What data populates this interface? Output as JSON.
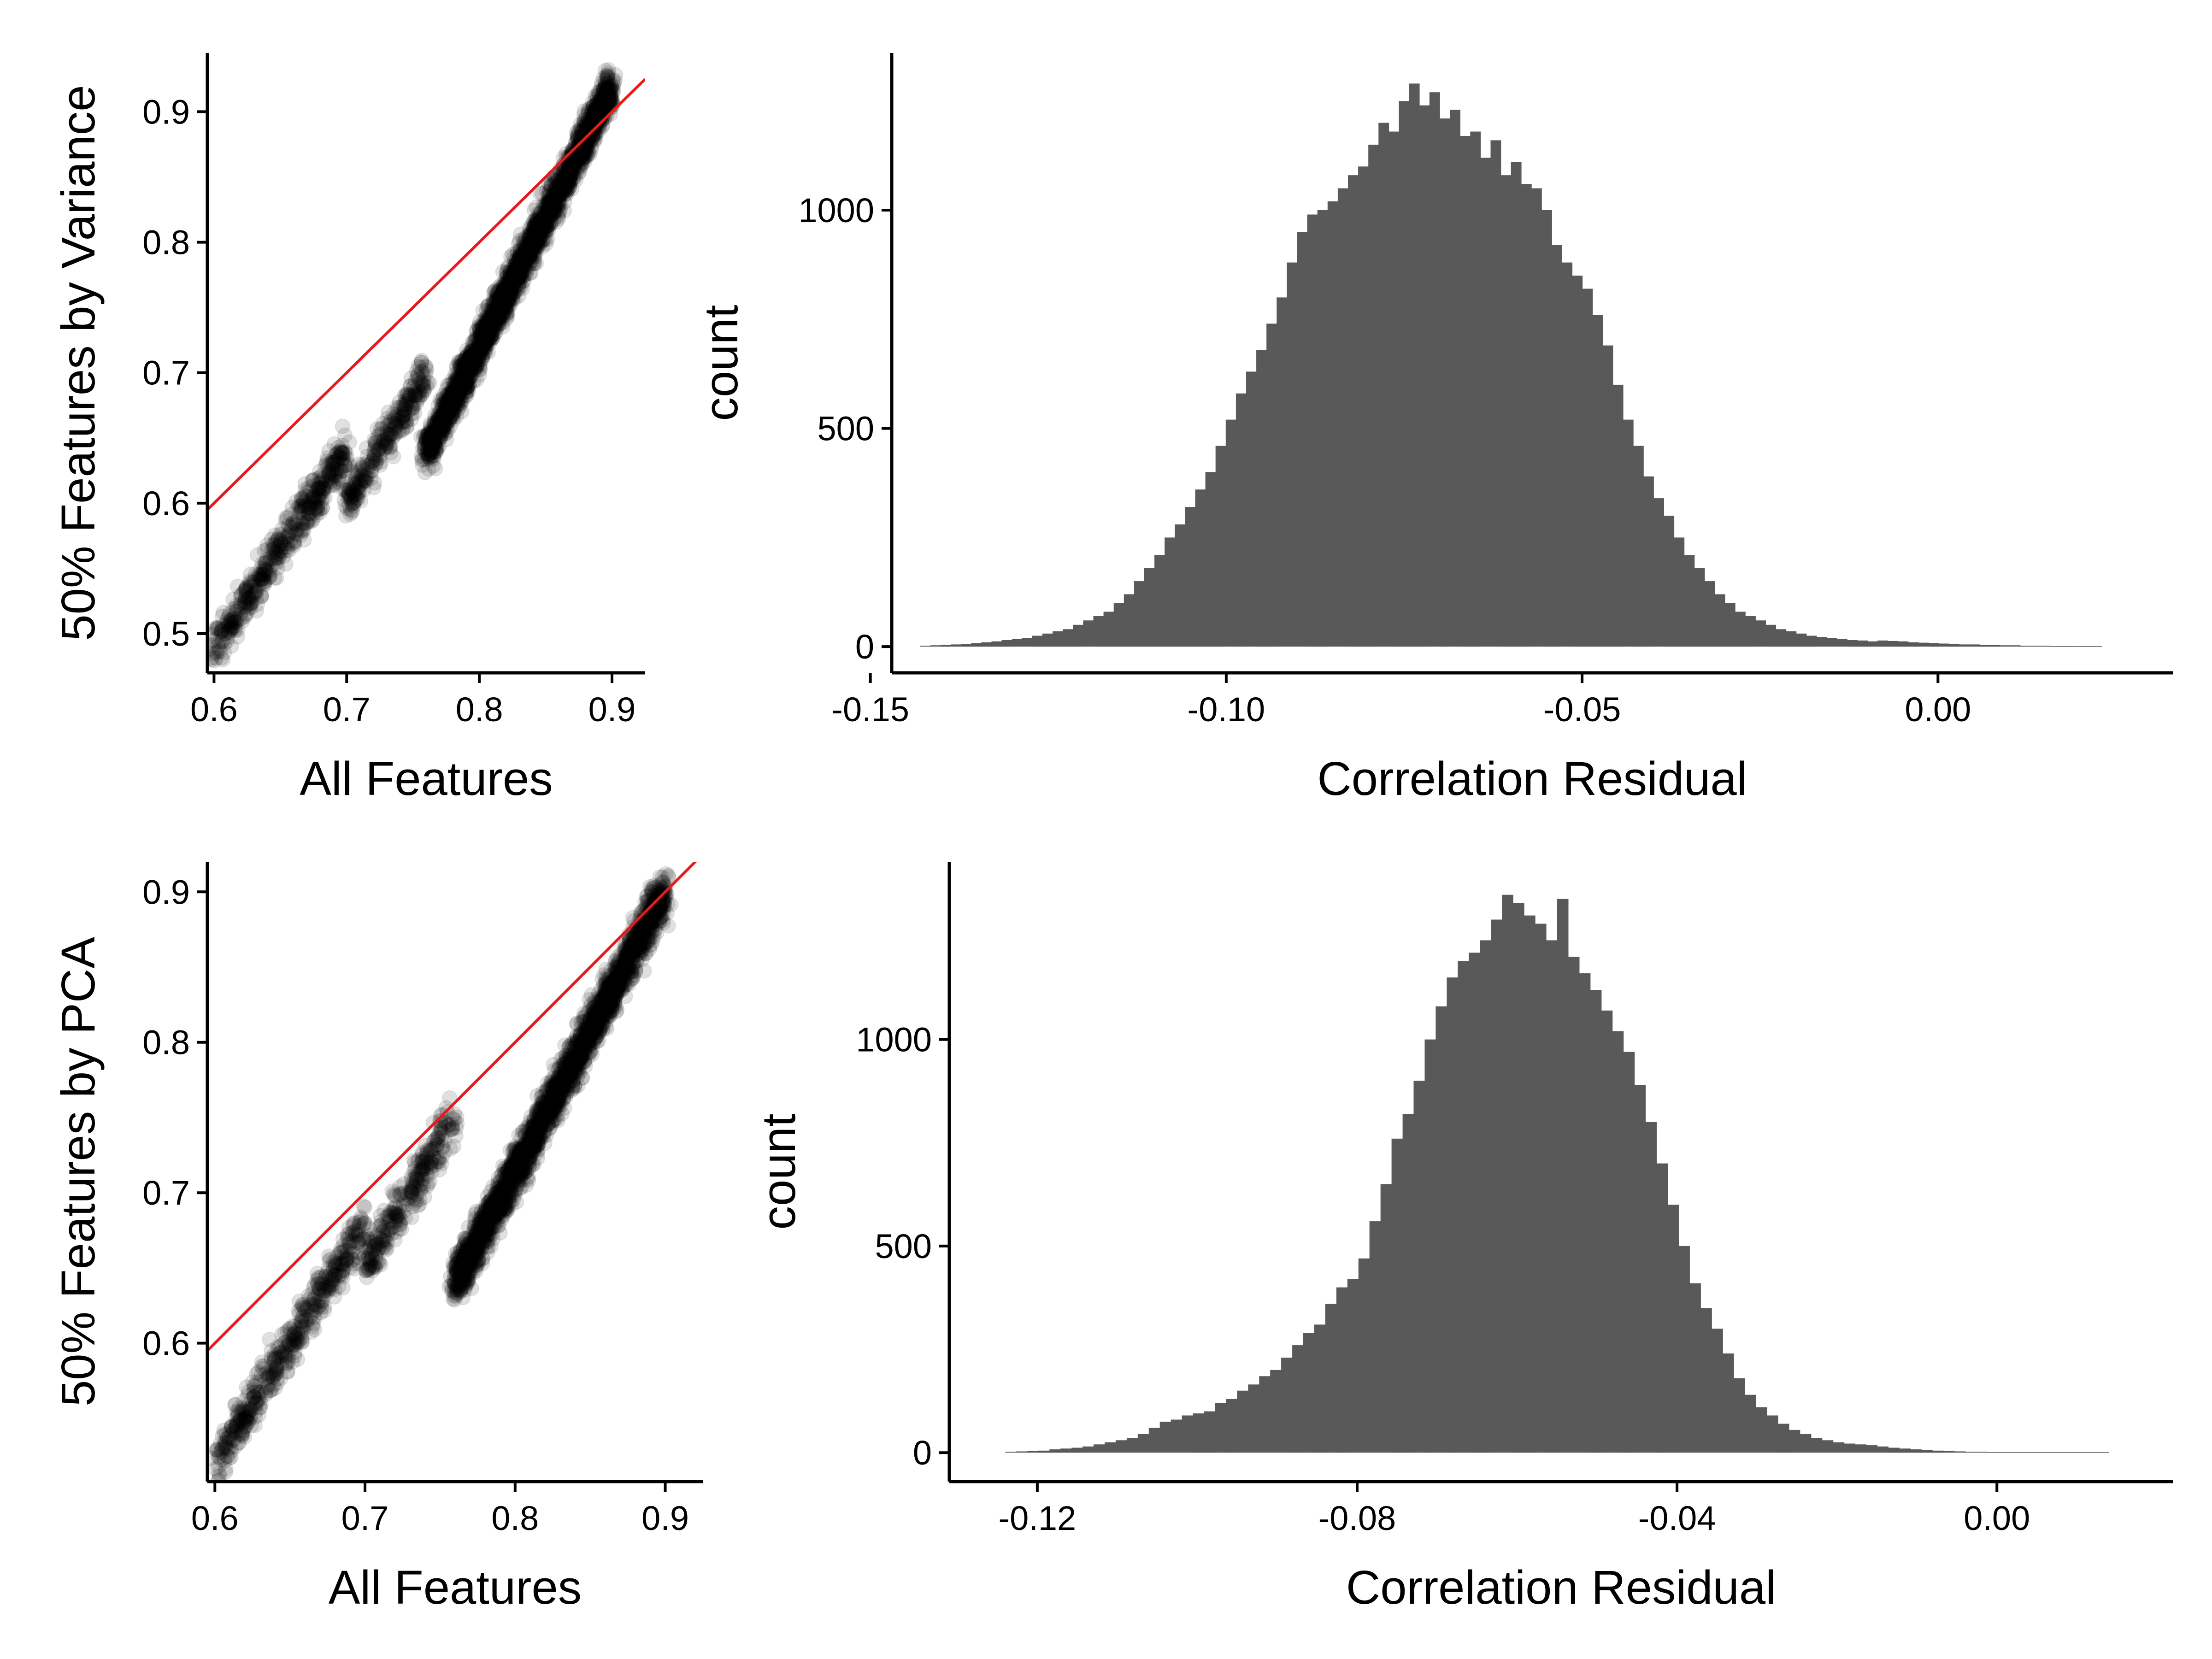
{
  "chart_data": [
    {
      "type": "scatter",
      "title": "",
      "xlabel": "All Features",
      "ylabel": "50% Features by Variance",
      "xlim": [
        0.595,
        0.925
      ],
      "ylim": [
        0.47,
        0.945
      ],
      "xticks": [
        "0.6",
        "0.7",
        "0.8",
        "0.9"
      ],
      "yticks": [
        "0.5",
        "0.6",
        "0.7",
        "0.8",
        "0.9"
      ],
      "point_color": "#000000",
      "point_opacity": 0.12,
      "reference_line": {
        "slope": 1,
        "intercept": 0,
        "color": "#e8191c"
      },
      "series": [
        {
          "clusters": [
            {
              "x": [
                0.6,
                0.7
              ],
              "y": [
                0.49,
                0.64
              ],
              "n": 500
            },
            {
              "x": [
                0.7,
                0.76
              ],
              "y": [
                0.6,
                0.7
              ],
              "n": 300
            },
            {
              "x": [
                0.76,
                0.9
              ],
              "y": [
                0.64,
                0.92
              ],
              "n": 2500
            }
          ]
        }
      ]
    },
    {
      "type": "bar",
      "title": "",
      "xlabel": "Correlation Residual",
      "ylabel": "count",
      "xlim": [
        -0.147,
        0.033
      ],
      "ylim": [
        -60,
        1360
      ],
      "xticks": [
        "-0.15",
        "-0.10",
        "-0.05",
        "0.00"
      ],
      "yticks": [
        "0",
        "500",
        "1000"
      ],
      "bar_color": "#595959",
      "x_start": -0.143,
      "x_end": 0.023,
      "values": [
        2,
        3,
        4,
        5,
        6,
        8,
        10,
        12,
        15,
        18,
        20,
        25,
        30,
        35,
        40,
        50,
        60,
        70,
        80,
        100,
        120,
        150,
        180,
        210,
        250,
        280,
        320,
        360,
        400,
        460,
        520,
        580,
        630,
        680,
        740,
        800,
        880,
        950,
        990,
        1000,
        1020,
        1050,
        1080,
        1100,
        1150,
        1200,
        1180,
        1250,
        1290,
        1240,
        1270,
        1210,
        1230,
        1170,
        1180,
        1120,
        1160,
        1080,
        1110,
        1060,
        1050,
        1000,
        920,
        880,
        850,
        820,
        760,
        690,
        600,
        520,
        460,
        390,
        340,
        300,
        250,
        210,
        180,
        150,
        120,
        100,
        80,
        70,
        60,
        50,
        40,
        35,
        30,
        25,
        22,
        20,
        18,
        15,
        14,
        12,
        14,
        13,
        12,
        10,
        9,
        8,
        7,
        6,
        5,
        5,
        4,
        4,
        3,
        3,
        2,
        2,
        2,
        1,
        1,
        1,
        1,
        1
      ]
    },
    {
      "type": "scatter",
      "title": "",
      "xlabel": "All Features",
      "ylabel": "50% Features by PCA",
      "xlim": [
        0.595,
        0.925
      ],
      "ylim": [
        0.508,
        0.92
      ],
      "xticks": [
        "0.6",
        "0.7",
        "0.8",
        "0.9"
      ],
      "yticks": [
        "0.6",
        "0.7",
        "0.8",
        "0.9"
      ],
      "point_color": "#000000",
      "point_opacity": 0.12,
      "reference_line": {
        "slope": 1,
        "intercept": 0,
        "color": "#e8191c"
      },
      "series": [
        {
          "clusters": [
            {
              "x": [
                0.6,
                0.7
              ],
              "y": [
                0.52,
                0.68
              ],
              "n": 500
            },
            {
              "x": [
                0.7,
                0.76
              ],
              "y": [
                0.65,
                0.75
              ],
              "n": 300
            },
            {
              "x": [
                0.76,
                0.9
              ],
              "y": [
                0.64,
                0.9
              ],
              "n": 2500
            }
          ]
        }
      ]
    },
    {
      "type": "bar",
      "title": "",
      "xlabel": "Correlation Residual",
      "ylabel": "count",
      "xlim": [
        -0.131,
        0.022
      ],
      "ylim": [
        -70,
        1430
      ],
      "xticks": [
        "-0.12",
        "-0.08",
        "-0.04",
        "0.00"
      ],
      "yticks": [
        "0",
        "500",
        "1000"
      ],
      "bar_color": "#595959",
      "x_start": -0.124,
      "x_end": 0.014,
      "values": [
        2,
        3,
        4,
        5,
        8,
        10,
        12,
        15,
        20,
        25,
        30,
        35,
        45,
        60,
        75,
        80,
        90,
        95,
        100,
        120,
        130,
        150,
        165,
        185,
        200,
        230,
        260,
        290,
        310,
        360,
        400,
        420,
        470,
        560,
        650,
        760,
        820,
        900,
        1000,
        1080,
        1150,
        1190,
        1210,
        1240,
        1290,
        1350,
        1330,
        1300,
        1280,
        1240,
        1340,
        1200,
        1160,
        1120,
        1070,
        1020,
        970,
        890,
        800,
        700,
        600,
        500,
        410,
        350,
        300,
        240,
        180,
        140,
        110,
        90,
        70,
        55,
        45,
        35,
        30,
        25,
        22,
        20,
        18,
        15,
        12,
        10,
        8,
        6,
        5,
        4,
        3,
        2,
        2,
        1,
        1,
        1,
        1,
        1,
        1,
        1,
        1,
        1,
        1,
        1
      ]
    }
  ]
}
